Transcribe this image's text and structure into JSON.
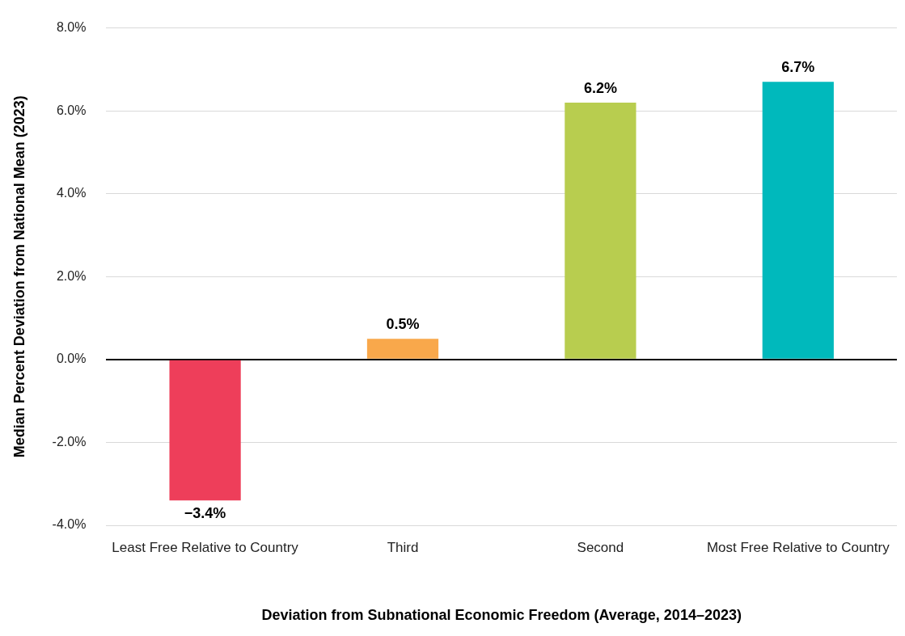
{
  "chart_data": {
    "type": "bar",
    "categories": [
      "Least Free Relative to Country",
      "Third",
      "Second",
      "Most Free Relative to Country"
    ],
    "values": [
      -3.4,
      0.5,
      6.2,
      6.7
    ],
    "colors": [
      "#ee3e5a",
      "#f9a84b",
      "#b8cd4f",
      "#00b9bc"
    ],
    "value_labels": [
      "−3.4%",
      "0.5%",
      "6.2%",
      "6.7%"
    ],
    "xlabel": "Deviation from Subnational Economic Freedom (Average, 2014–2023)",
    "ylabel": "Median Percent Deviation from National Mean (2023)",
    "ylim": [
      -4,
      8
    ],
    "yticks": [
      {
        "value": -4,
        "label": "-4.0%"
      },
      {
        "value": -2,
        "label": "-2.0%"
      },
      {
        "value": 0,
        "label": "0.0%"
      },
      {
        "value": 2,
        "label": "2.0%"
      },
      {
        "value": 4,
        "label": "4.0%"
      },
      {
        "value": 6,
        "label": "6.0%"
      },
      {
        "value": 8,
        "label": "8.0%"
      }
    ],
    "grid": "y",
    "legend": false
  }
}
